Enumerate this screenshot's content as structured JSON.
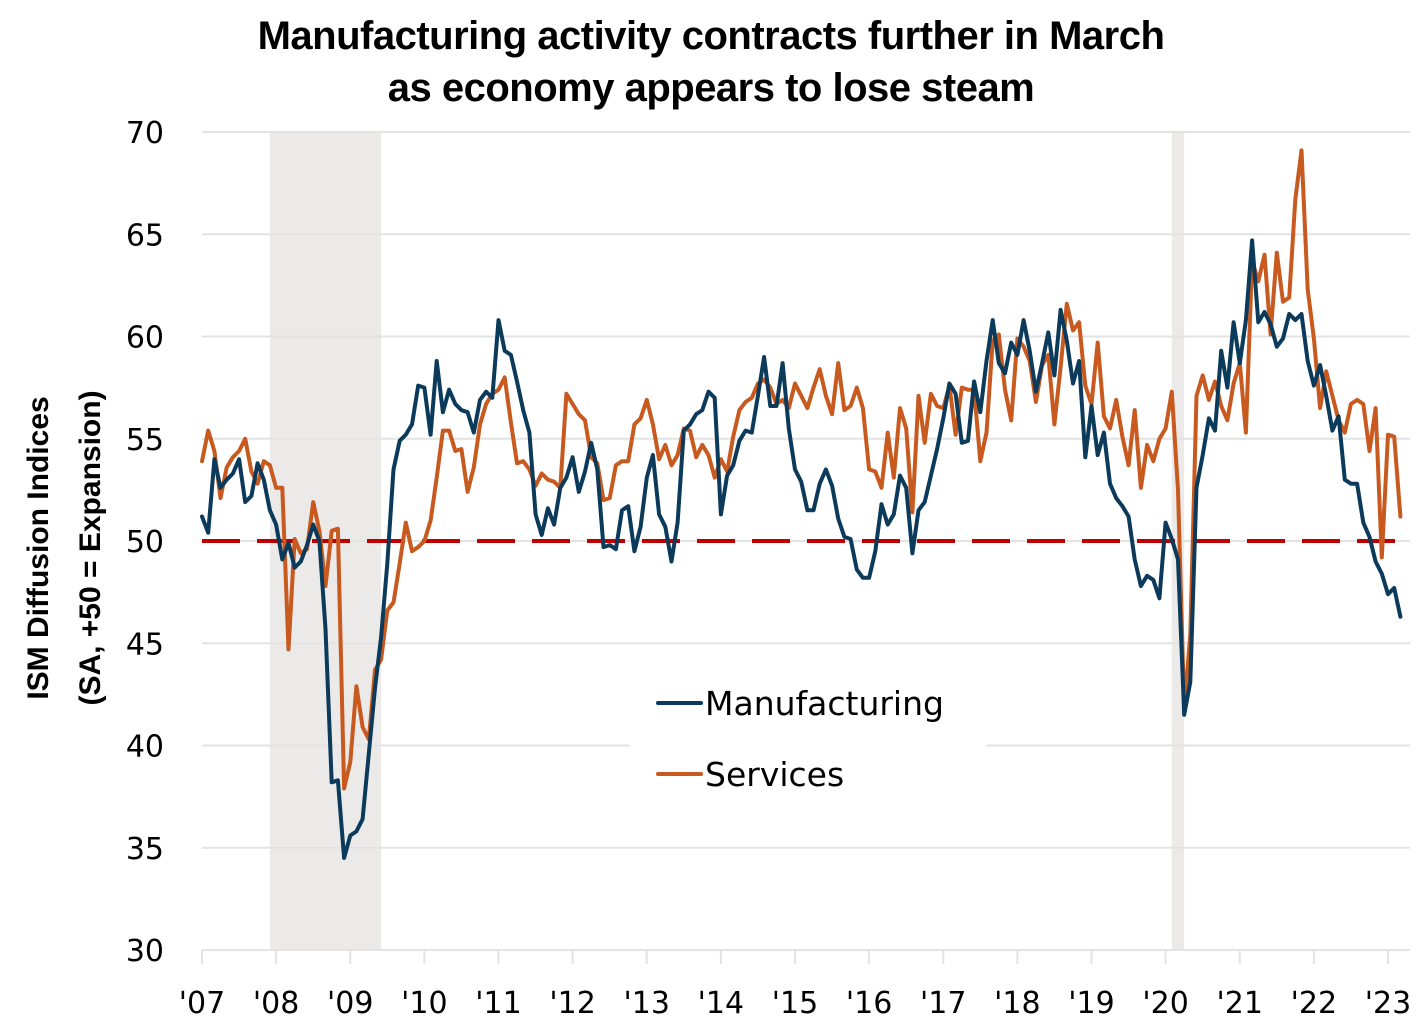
{
  "chart_data": {
    "type": "line",
    "title": [
      "Manufacturing activity contracts further in March",
      "as economy appears to lose steam"
    ],
    "xlabel": "",
    "ylabel": [
      "ISM Diffusion Indices",
      "(SA, +50 = Expansion)"
    ],
    "ylim": [
      30,
      70
    ],
    "yticks": [
      30,
      35,
      40,
      45,
      50,
      55,
      60,
      65,
      70
    ],
    "xticks": [
      "'07",
      "'08",
      "'09",
      "'10",
      "'11",
      "'12",
      "'13",
      "'14",
      "'15",
      "'16",
      "'17",
      "'18",
      "'19",
      "'20",
      "'21",
      "'22",
      "'23"
    ],
    "x_start": "2007-01",
    "x_end": "2023-03",
    "frequency": "monthly",
    "grid": true,
    "reference_line": {
      "value": 50,
      "style": "dashed",
      "color": "#C00000"
    },
    "recessions": [
      {
        "start": "2007-12",
        "end": "2009-06"
      },
      {
        "start": "2020-02",
        "end": "2020-04"
      }
    ],
    "legend": {
      "position": "center-bottom"
    },
    "series": [
      {
        "name": "Manufacturing",
        "color": "#0B3A5B",
        "values": [
          51.2,
          50.4,
          54.0,
          52.6,
          53.0,
          53.3,
          54.0,
          51.9,
          52.2,
          53.8,
          53.0,
          51.5,
          50.8,
          49.1,
          49.9,
          48.7,
          49.0,
          49.8,
          50.8,
          50.0,
          45.7,
          38.2,
          38.3,
          34.5,
          35.6,
          35.8,
          36.4,
          39.6,
          42.8,
          45.3,
          48.9,
          53.5,
          54.9,
          55.2,
          55.7,
          57.6,
          57.5,
          55.2,
          58.8,
          56.3,
          57.4,
          56.7,
          56.4,
          56.3,
          55.3,
          56.9,
          57.3,
          57.0,
          60.8,
          59.3,
          59.1,
          57.8,
          56.4,
          55.3,
          51.3,
          50.3,
          51.6,
          50.8,
          52.6,
          53.1,
          54.1,
          52.4,
          53.4,
          54.8,
          53.5,
          49.7,
          49.8,
          49.6,
          51.5,
          51.7,
          49.5,
          50.7,
          53.1,
          54.2,
          51.3,
          50.7,
          49.0,
          50.9,
          55.4,
          55.7,
          56.2,
          56.4,
          57.3,
          57.0,
          51.3,
          53.2,
          53.7,
          54.9,
          55.4,
          55.3,
          57.1,
          59.0,
          56.6,
          56.6,
          58.7,
          55.5,
          53.5,
          52.9,
          51.5,
          51.5,
          52.8,
          53.5,
          52.7,
          51.1,
          50.2,
          50.1,
          48.6,
          48.2,
          48.2,
          49.5,
          51.8,
          50.8,
          51.3,
          53.2,
          52.6,
          49.4,
          51.5,
          51.9,
          53.2,
          54.5,
          56.0,
          57.7,
          57.2,
          54.8,
          54.9,
          57.8,
          56.3,
          58.8,
          60.8,
          58.7,
          58.2,
          59.7,
          59.1,
          60.8,
          59.3,
          57.3,
          58.7,
          60.2,
          58.1,
          61.3,
          59.8,
          57.7,
          58.8,
          54.1,
          56.6,
          54.2,
          55.3,
          52.8,
          52.1,
          51.7,
          51.2,
          49.1,
          47.8,
          48.3,
          48.1,
          47.2,
          50.9,
          50.1,
          49.1,
          41.5,
          43.1,
          52.6,
          54.2,
          56.0,
          55.4,
          59.3,
          57.5,
          60.7,
          58.7,
          60.8,
          64.7,
          60.7,
          61.2,
          60.6,
          59.5,
          59.9,
          61.1,
          60.8,
          61.1,
          58.8,
          57.6,
          58.6,
          57.1,
          55.4,
          56.1,
          53.0,
          52.8,
          52.8,
          50.9,
          50.2,
          49.0,
          48.4,
          47.4,
          47.7,
          46.3
        ]
      },
      {
        "name": "Services",
        "color": "#C85A20",
        "values": [
          53.9,
          55.4,
          54.4,
          52.1,
          53.6,
          54.1,
          54.4,
          55.0,
          53.4,
          52.8,
          53.9,
          53.7,
          52.6,
          52.6,
          44.7,
          50.1,
          49.4,
          49.6,
          51.9,
          50.5,
          47.8,
          50.5,
          50.6,
          37.9,
          39.2,
          42.9,
          40.9,
          40.3,
          43.7,
          44.2,
          46.6,
          47.0,
          48.9,
          50.9,
          49.5,
          49.7,
          50.0,
          51.0,
          53.1,
          55.4,
          55.4,
          54.4,
          54.5,
          52.4,
          53.6,
          55.7,
          56.7,
          57.2,
          57.4,
          58.0,
          55.8,
          53.8,
          53.9,
          53.5,
          52.7,
          53.3,
          53.0,
          52.9,
          52.6,
          57.2,
          56.7,
          56.2,
          55.9,
          54.1,
          53.8,
          52.0,
          52.1,
          53.7,
          53.9,
          53.9,
          55.7,
          56.0,
          56.9,
          55.7,
          54.0,
          54.7,
          53.7,
          54.2,
          55.5,
          55.4,
          54.1,
          54.7,
          54.2,
          53.1,
          54.0,
          53.4,
          55.1,
          56.4,
          56.8,
          57.0,
          57.7,
          57.9,
          57.5,
          56.7,
          56.9,
          56.5,
          57.7,
          57.1,
          56.5,
          57.5,
          58.4,
          57.1,
          56.2,
          58.7,
          56.4,
          56.6,
          57.5,
          56.5,
          53.5,
          53.4,
          52.6,
          55.3,
          53.1,
          56.5,
          55.5,
          51.4,
          57.1,
          54.8,
          57.2,
          56.6,
          56.5,
          57.6,
          55.2,
          57.5,
          57.4,
          57.4,
          53.9,
          55.3,
          59.8,
          60.1,
          57.4,
          55.9,
          59.9,
          59.5,
          58.8,
          56.8,
          58.6,
          59.1,
          55.7,
          58.5,
          61.6,
          60.3,
          60.7,
          57.6,
          56.7,
          59.7,
          56.1,
          55.5,
          56.9,
          55.1,
          53.7,
          56.4,
          52.6,
          54.7,
          53.9,
          55.0,
          55.5,
          57.3,
          52.5,
          41.8,
          45.4,
          57.1,
          58.1,
          56.9,
          57.8,
          56.6,
          55.9,
          57.7,
          58.7,
          55.3,
          63.7,
          62.7,
          64.0,
          60.1,
          64.1,
          61.7,
          61.9,
          66.7,
          69.1,
          62.3,
          59.9,
          56.5,
          58.3,
          57.1,
          55.9,
          55.3,
          56.7,
          56.9,
          56.7,
          54.4,
          56.5,
          49.2,
          55.2,
          55.1,
          51.2
        ]
      }
    ]
  }
}
